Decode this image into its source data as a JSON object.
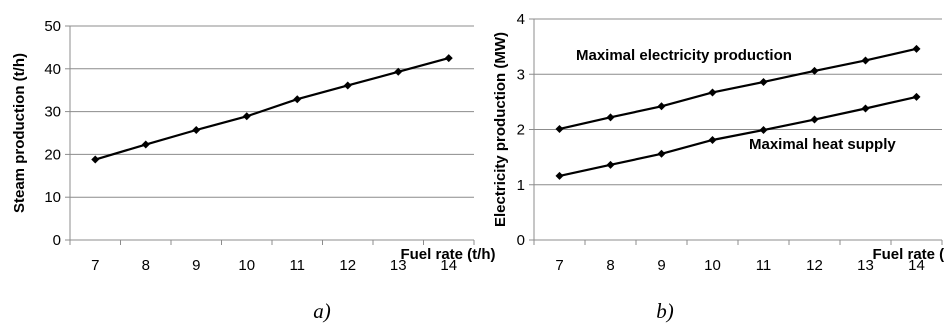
{
  "chart_data": [
    {
      "type": "line",
      "caption": "a)",
      "xlabel": "Fuel rate (t/h)",
      "ylabel": "Steam production (t/h)",
      "ylim": [
        0,
        50
      ],
      "yticks": [
        0,
        10,
        20,
        30,
        40,
        50
      ],
      "categories": [
        "7",
        "8",
        "9",
        "10",
        "11",
        "12",
        "13",
        "14"
      ],
      "grid": "horizontal",
      "series": [
        {
          "values": [
            18.8,
            22.3,
            25.7,
            28.9,
            32.9,
            36.1,
            39.3,
            42.5
          ]
        }
      ]
    },
    {
      "type": "line",
      "caption": "b)",
      "xlabel": "Fuel rate (t/h)",
      "ylabel": "Electricity production (MW)",
      "ylim": [
        0,
        4
      ],
      "yticks": [
        0,
        1,
        2,
        3,
        4
      ],
      "categories": [
        "7",
        "8",
        "9",
        "10",
        "11",
        "12",
        "13",
        "14"
      ],
      "grid": "horizontal",
      "series": [
        {
          "name": "Maximal electricity production",
          "values": [
            2.01,
            2.22,
            2.42,
            2.67,
            2.86,
            3.06,
            3.25,
            3.46
          ]
        },
        {
          "name": "Maximal heat supply",
          "values": [
            1.16,
            1.36,
            1.56,
            1.81,
            1.99,
            2.18,
            2.38,
            2.59
          ]
        }
      ]
    }
  ]
}
